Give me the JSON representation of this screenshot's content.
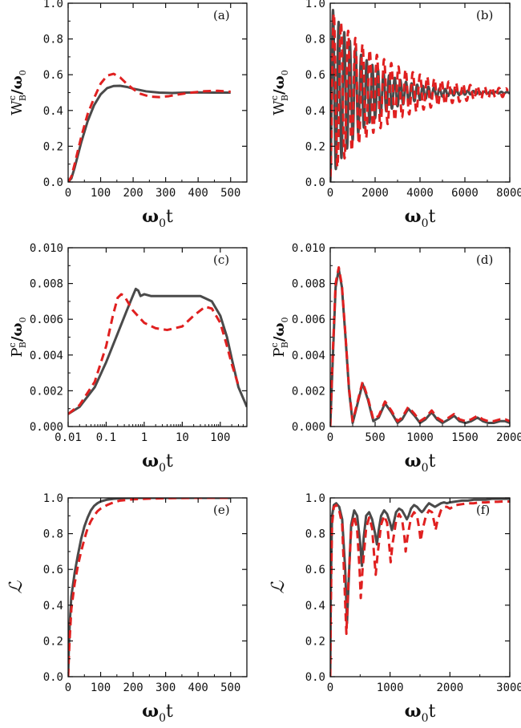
{
  "colors": {
    "solid": "#4a4a4a",
    "dashed": "#e02020"
  },
  "chart_data": [
    {
      "type": "line",
      "panel_label": "(a)",
      "xlabel": {
        "main": "ω",
        "sub": "0",
        "tail": "t"
      },
      "ylabel": {
        "main": "W",
        "sup": "c",
        "sub": "B",
        "tail": "/ω",
        "sub2": "0"
      },
      "xlim": [
        0,
        550
      ],
      "ylim": [
        0,
        1.0
      ],
      "xscale": "linear",
      "xticks": [
        0,
        100,
        200,
        300,
        400,
        500
      ],
      "xtick_labels": [
        "0",
        "100",
        "200",
        "300",
        "400",
        "500"
      ],
      "yticks": [
        0,
        0.2,
        0.4,
        0.6,
        0.8,
        1.0
      ],
      "ytick_labels": [
        "0.0",
        "0.2",
        "0.4",
        "0.6",
        "0.8",
        "1.0"
      ],
      "series": [
        {
          "style": "solid",
          "x": [
            0,
            10,
            20,
            40,
            60,
            80,
            100,
            120,
            140,
            160,
            180,
            200,
            240,
            280,
            320,
            360,
            400,
            450,
            500
          ],
          "y": [
            0,
            0.02,
            0.08,
            0.22,
            0.34,
            0.43,
            0.49,
            0.525,
            0.537,
            0.538,
            0.532,
            0.522,
            0.507,
            0.5,
            0.498,
            0.5,
            0.501,
            0.5,
            0.5
          ]
        },
        {
          "style": "dashed",
          "x": [
            0,
            10,
            20,
            40,
            60,
            80,
            100,
            120,
            140,
            160,
            180,
            200,
            220,
            250,
            280,
            310,
            340,
            380,
            420,
            460,
            500
          ],
          "y": [
            0,
            0.03,
            0.1,
            0.25,
            0.38,
            0.47,
            0.55,
            0.595,
            0.605,
            0.585,
            0.55,
            0.52,
            0.495,
            0.478,
            0.475,
            0.48,
            0.49,
            0.5,
            0.508,
            0.51,
            0.505
          ]
        }
      ]
    },
    {
      "type": "line",
      "panel_label": "(b)",
      "xlabel": {
        "main": "ω",
        "sub": "0",
        "tail": "t"
      },
      "ylabel": {
        "main": "W",
        "sup": "c",
        "sub": "B",
        "tail": "/ω",
        "sub2": "0"
      },
      "xlim": [
        0,
        8000
      ],
      "ylim": [
        0,
        1.0
      ],
      "xscale": "linear",
      "xticks": [
        0,
        2000,
        4000,
        6000,
        8000
      ],
      "xtick_labels": [
        "0",
        "2000",
        "4000",
        "6000",
        "8000"
      ],
      "yticks": [
        0,
        0.2,
        0.4,
        0.6,
        0.8,
        1.0
      ],
      "ytick_labels": [
        "0.0",
        "0.2",
        "0.4",
        "0.6",
        "0.8",
        "1.0"
      ],
      "series": [
        {
          "style": "solid",
          "oscillation": {
            "offset": 0.5,
            "amplitude0": 0.5,
            "decay_time": 1600,
            "period": 250,
            "t_max": 8000
          }
        },
        {
          "style": "dashed",
          "oscillation": {
            "offset": 0.5,
            "amplitude0": 0.47,
            "decay_time": 2600,
            "period": 320,
            "t_max": 7900
          }
        }
      ]
    },
    {
      "type": "line",
      "panel_label": "(c)",
      "xlabel": {
        "main": "ω",
        "sub": "0",
        "tail": "t"
      },
      "ylabel": {
        "main": "P",
        "sup": "c",
        "sub": "B",
        "tail": "/ω",
        "sub2": "0"
      },
      "xlim": [
        0.01,
        500
      ],
      "ylim": [
        0,
        0.01
      ],
      "xscale": "log",
      "xticks": [
        0.01,
        0.1,
        1,
        10,
        100
      ],
      "xtick_labels": [
        "0.01",
        "0.1",
        "1",
        "10",
        "100"
      ],
      "yticks": [
        0,
        0.002,
        0.004,
        0.006,
        0.008,
        0.01
      ],
      "ytick_labels": [
        "0.000",
        "0.002",
        "0.004",
        "0.006",
        "0.008",
        "0.010"
      ],
      "series": [
        {
          "style": "solid",
          "x": [
            0.01,
            0.02,
            0.05,
            0.1,
            0.2,
            0.35,
            0.5,
            0.6,
            0.7,
            0.8,
            1,
            1.5,
            3,
            10,
            30,
            60,
            100,
            150,
            200,
            300,
            500
          ],
          "y": [
            0.0007,
            0.0011,
            0.0022,
            0.0036,
            0.0052,
            0.0065,
            0.0073,
            0.0077,
            0.0076,
            0.0073,
            0.0074,
            0.0073,
            0.0073,
            0.0073,
            0.0073,
            0.007,
            0.0062,
            0.005,
            0.0038,
            0.0022,
            0.0011
          ]
        },
        {
          "style": "dashed",
          "x": [
            0.01,
            0.02,
            0.05,
            0.1,
            0.15,
            0.2,
            0.25,
            0.3,
            0.5,
            1,
            2,
            4,
            10,
            20,
            40,
            60,
            100,
            150,
            200,
            300
          ],
          "y": [
            0.0007,
            0.0012,
            0.0025,
            0.0045,
            0.0062,
            0.0072,
            0.0074,
            0.0073,
            0.0065,
            0.0058,
            0.0055,
            0.0054,
            0.0056,
            0.0062,
            0.0067,
            0.0066,
            0.0058,
            0.0045,
            0.0035,
            0.0023
          ]
        }
      ]
    },
    {
      "type": "line",
      "panel_label": "(d)",
      "xlabel": {
        "main": "ω",
        "sub": "0",
        "tail": "t"
      },
      "ylabel": {
        "main": "P",
        "sup": "c",
        "sub": "B",
        "tail": "/ω",
        "sub2": "0"
      },
      "xlim": [
        0,
        2000
      ],
      "ylim": [
        0,
        0.01
      ],
      "xscale": "linear",
      "xticks": [
        0,
        500,
        1000,
        1500,
        2000
      ],
      "xtick_labels": [
        "0",
        "500",
        "1000",
        "1500",
        "2000"
      ],
      "yticks": [
        0,
        0.002,
        0.004,
        0.006,
        0.008,
        0.01
      ],
      "ytick_labels": [
        "0.000",
        "0.002",
        "0.004",
        "0.006",
        "0.008",
        "0.010"
      ],
      "series": [
        {
          "style": "solid",
          "x": [
            0,
            30,
            60,
            95,
            130,
            170,
            210,
            250,
            300,
            360,
            420,
            480,
            540,
            610,
            680,
            750,
            800,
            870,
            940,
            1000,
            1060,
            1130,
            1190,
            1250,
            1320,
            1380,
            1440,
            1510,
            1570,
            1640,
            1700,
            1760,
            1820,
            1890,
            1950,
            2000
          ],
          "y": [
            0,
            0.004,
            0.0078,
            0.0088,
            0.0078,
            0.005,
            0.002,
            0.0002,
            0.0012,
            0.0024,
            0.0015,
            0.0003,
            0.0005,
            0.0013,
            0.0008,
            0.0002,
            0.0004,
            0.001,
            0.0006,
            0.0002,
            0.0004,
            0.0008,
            0.0004,
            0.0002,
            0.0004,
            0.0006,
            0.0003,
            0.0002,
            0.0003,
            0.0005,
            0.0003,
            0.0002,
            0.0002,
            0.0003,
            0.0003,
            0.0002
          ]
        },
        {
          "style": "dashed",
          "x": [
            0,
            30,
            60,
            95,
            130,
            170,
            210,
            250,
            300,
            360,
            420,
            480,
            540,
            610,
            680,
            750,
            800,
            870,
            940,
            1000,
            1060,
            1130,
            1190,
            1250,
            1320,
            1380,
            1440,
            1510,
            1570,
            1640,
            1700,
            1760,
            1820,
            1890,
            1950,
            2000
          ],
          "y": [
            0,
            0.0043,
            0.008,
            0.0089,
            0.0079,
            0.0051,
            0.0021,
            0.0003,
            0.0013,
            0.0025,
            0.0016,
            0.0004,
            0.0006,
            0.0014,
            0.0009,
            0.0003,
            0.0005,
            0.0011,
            0.0007,
            0.0003,
            0.0005,
            0.0009,
            0.0005,
            0.0003,
            0.0005,
            0.0007,
            0.0004,
            0.0003,
            0.0004,
            0.0006,
            0.0004,
            0.0003,
            0.0003,
            0.0004,
            0.0004,
            0.0003
          ]
        }
      ]
    },
    {
      "type": "line",
      "panel_label": "(e)",
      "xlabel": {
        "main": "ω",
        "sub": "0",
        "tail": "t"
      },
      "ylabel": {
        "main": "ℒ"
      },
      "xlim": [
        0,
        550
      ],
      "ylim": [
        0,
        1.0
      ],
      "xscale": "linear",
      "xticks": [
        0,
        100,
        200,
        300,
        400,
        500
      ],
      "xtick_labels": [
        "0",
        "100",
        "200",
        "300",
        "400",
        "500"
      ],
      "yticks": [
        0,
        0.2,
        0.4,
        0.6,
        0.8,
        1.0
      ],
      "ytick_labels": [
        "0.0",
        "0.2",
        "0.4",
        "0.6",
        "0.8",
        "1.0"
      ],
      "series": [
        {
          "style": "solid",
          "x": [
            0,
            2,
            5,
            10,
            20,
            30,
            40,
            50,
            60,
            70,
            80,
            90,
            100,
            120,
            140,
            160,
            200,
            300,
            400,
            500
          ],
          "y": [
            0,
            0.15,
            0.3,
            0.45,
            0.58,
            0.68,
            0.77,
            0.84,
            0.89,
            0.93,
            0.955,
            0.97,
            0.98,
            0.99,
            0.995,
            0.998,
            1.0,
            1.0,
            1.0,
            1.0
          ]
        },
        {
          "style": "dashed",
          "x": [
            0,
            2,
            5,
            10,
            20,
            30,
            40,
            50,
            60,
            70,
            80,
            90,
            100,
            120,
            140,
            160,
            200,
            250,
            300,
            400,
            500
          ],
          "y": [
            0,
            0.1,
            0.22,
            0.38,
            0.52,
            0.62,
            0.7,
            0.77,
            0.83,
            0.87,
            0.9,
            0.925,
            0.94,
            0.96,
            0.975,
            0.985,
            0.992,
            0.996,
            0.998,
            1.0,
            1.0
          ]
        }
      ]
    },
    {
      "type": "line",
      "panel_label": "(f)",
      "xlabel": {
        "main": "ω",
        "sub": "0",
        "tail": "t"
      },
      "ylabel": {
        "main": "ℒ"
      },
      "xlim": [
        0,
        3000
      ],
      "ylim": [
        0,
        1.0
      ],
      "xscale": "linear",
      "xticks": [
        0,
        1000,
        2000,
        3000
      ],
      "xtick_labels": [
        "0",
        "1000",
        "2000",
        "3000"
      ],
      "yticks": [
        0,
        0.2,
        0.4,
        0.6,
        0.8,
        1.0
      ],
      "ytick_labels": [
        "0.0",
        "0.2",
        "0.4",
        "0.6",
        "0.8",
        "1.0"
      ],
      "series": [
        {
          "style": "solid",
          "x": [
            0,
            10,
            30,
            60,
            100,
            150,
            200,
            250,
            280,
            310,
            350,
            400,
            450,
            500,
            530,
            560,
            600,
            650,
            700,
            750,
            780,
            810,
            850,
            900,
            950,
            1000,
            1030,
            1060,
            1100,
            1150,
            1200,
            1250,
            1280,
            1310,
            1350,
            1400,
            1450,
            1500,
            1530,
            1560,
            1600,
            1650,
            1700,
            1750,
            1800,
            1850,
            1900,
            1950,
            2000,
            2100,
            2200,
            2300,
            2400,
            2500,
            2600,
            2700,
            2800,
            2900,
            3000
          ],
          "y": [
            0,
            0.5,
            0.9,
            0.96,
            0.97,
            0.95,
            0.88,
            0.6,
            0.3,
            0.55,
            0.85,
            0.93,
            0.9,
            0.75,
            0.62,
            0.78,
            0.9,
            0.92,
            0.88,
            0.8,
            0.74,
            0.82,
            0.9,
            0.93,
            0.91,
            0.86,
            0.82,
            0.86,
            0.92,
            0.94,
            0.93,
            0.9,
            0.88,
            0.9,
            0.94,
            0.96,
            0.95,
            0.93,
            0.92,
            0.93,
            0.95,
            0.97,
            0.96,
            0.95,
            0.96,
            0.97,
            0.975,
            0.97,
            0.975,
            0.98,
            0.985,
            0.985,
            0.99,
            0.99,
            0.99,
            0.995,
            0.995,
            0.995,
            0.995
          ]
        },
        {
          "style": "dashed",
          "x": [
            0,
            10,
            30,
            60,
            100,
            150,
            200,
            240,
            270,
            300,
            350,
            400,
            450,
            490,
            510,
            540,
            600,
            650,
            700,
            740,
            760,
            790,
            850,
            900,
            950,
            990,
            1010,
            1040,
            1100,
            1150,
            1200,
            1240,
            1260,
            1290,
            1350,
            1400,
            1450,
            1490,
            1510,
            1540,
            1600,
            1650,
            1700,
            1740,
            1760,
            1790,
            1850,
            1900,
            1950,
            2000,
            2100,
            2200,
            2300,
            2400,
            2500,
            2600,
            2700,
            2800,
            2900,
            3000
          ],
          "y": [
            0,
            0.4,
            0.85,
            0.95,
            0.96,
            0.93,
            0.85,
            0.5,
            0.24,
            0.5,
            0.82,
            0.9,
            0.82,
            0.6,
            0.44,
            0.6,
            0.83,
            0.89,
            0.83,
            0.65,
            0.57,
            0.68,
            0.85,
            0.9,
            0.86,
            0.72,
            0.64,
            0.74,
            0.87,
            0.91,
            0.88,
            0.78,
            0.7,
            0.78,
            0.89,
            0.92,
            0.9,
            0.82,
            0.76,
            0.82,
            0.9,
            0.93,
            0.92,
            0.86,
            0.82,
            0.87,
            0.93,
            0.95,
            0.95,
            0.94,
            0.96,
            0.965,
            0.97,
            0.97,
            0.975,
            0.975,
            0.978,
            0.978,
            0.98,
            0.98
          ]
        }
      ]
    }
  ]
}
